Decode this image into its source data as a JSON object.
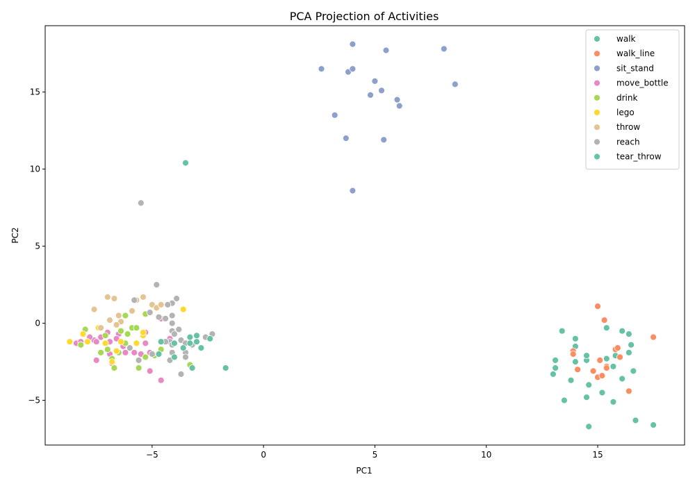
{
  "chart_data": {
    "type": "scatter",
    "title": "PCA Projection of Activities",
    "xlabel": "PC1",
    "ylabel": "PC2",
    "xlim": [
      -9.8,
      18.9
    ],
    "ylim": [
      -7.9,
      19.3
    ],
    "xticks": [
      -5,
      0,
      5,
      10,
      15
    ],
    "yticks": [
      -5,
      0,
      5,
      10,
      15
    ],
    "grid": false,
    "legend_position": "top-right",
    "series": [
      {
        "name": "walk",
        "color": "#66c2a5",
        "points": [
          [
            13.4,
            -0.5
          ],
          [
            14.0,
            -1.0
          ],
          [
            14.0,
            -1.5
          ],
          [
            13.1,
            -2.4
          ],
          [
            13.1,
            -2.9
          ],
          [
            14.0,
            -2.5
          ],
          [
            14.5,
            -2.4
          ],
          [
            14.6,
            -4.0
          ],
          [
            13.8,
            -3.7
          ],
          [
            13.0,
            -3.3
          ],
          [
            13.5,
            -5.0
          ],
          [
            14.5,
            -4.8
          ],
          [
            15.2,
            -4.5
          ],
          [
            15.7,
            -5.1
          ],
          [
            14.6,
            -6.7
          ],
          [
            16.7,
            -6.3
          ],
          [
            17.5,
            -6.6
          ],
          [
            15.4,
            -0.3
          ],
          [
            16.1,
            -0.5
          ],
          [
            16.4,
            -0.7
          ],
          [
            16.5,
            -1.4
          ],
          [
            16.4,
            -1.9
          ],
          [
            15.8,
            -2.1
          ],
          [
            15.4,
            -2.3
          ],
          [
            15.7,
            -2.8
          ],
          [
            16.6,
            -3.1
          ],
          [
            16.1,
            -3.6
          ],
          [
            14.5,
            -2.1
          ]
        ]
      },
      {
        "name": "walk_line",
        "color": "#fc8d62",
        "points": [
          [
            15.0,
            1.1
          ],
          [
            15.3,
            0.2
          ],
          [
            17.5,
            -0.9
          ],
          [
            13.9,
            -1.8
          ],
          [
            13.9,
            -2.0
          ],
          [
            15.8,
            -1.7
          ],
          [
            15.9,
            -1.6
          ],
          [
            15.1,
            -2.4
          ],
          [
            16.0,
            -2.2
          ],
          [
            15.4,
            -2.8
          ],
          [
            14.1,
            -3.0
          ],
          [
            14.8,
            -3.1
          ],
          [
            15.0,
            -3.5
          ],
          [
            15.2,
            -3.4
          ],
          [
            16.4,
            -4.4
          ],
          [
            15.4,
            -2.9
          ]
        ]
      },
      {
        "name": "sit_stand",
        "color": "#8da0cb",
        "points": [
          [
            4.0,
            18.1
          ],
          [
            5.5,
            17.7
          ],
          [
            8.1,
            17.8
          ],
          [
            2.6,
            16.5
          ],
          [
            3.8,
            16.3
          ],
          [
            4.0,
            16.5
          ],
          [
            5.0,
            15.7
          ],
          [
            5.3,
            15.1
          ],
          [
            4.8,
            14.8
          ],
          [
            8.6,
            15.5
          ],
          [
            6.0,
            14.5
          ],
          [
            6.1,
            14.1
          ],
          [
            3.2,
            13.5
          ],
          [
            3.7,
            12.0
          ],
          [
            5.4,
            11.9
          ],
          [
            4.0,
            8.6
          ]
        ]
      },
      {
        "name": "move_bottle",
        "color": "#e78ac3",
        "points": [
          [
            -8.4,
            -1.3
          ],
          [
            -8.2,
            -1.2
          ],
          [
            -7.6,
            -1.1
          ],
          [
            -7.5,
            -1.2
          ],
          [
            -7.3,
            -0.9
          ],
          [
            -7.0,
            -0.6
          ],
          [
            -6.9,
            -1.2
          ],
          [
            -6.5,
            -0.7
          ],
          [
            -6.3,
            -1.5
          ],
          [
            -6.2,
            -1.9
          ],
          [
            -5.8,
            -1.9
          ],
          [
            -5.5,
            -2.0
          ],
          [
            -5.3,
            -1.3
          ],
          [
            -5.1,
            -1.9
          ],
          [
            -5.1,
            -3.1
          ],
          [
            -4.6,
            -3.7
          ],
          [
            -7.5,
            -2.4
          ],
          [
            -6.8,
            -2.6
          ],
          [
            -4.2,
            -1.0
          ],
          [
            -4.6,
            0.3
          ],
          [
            -5.3,
            -0.6
          ],
          [
            -7.8,
            -0.9
          ],
          [
            -6.6,
            -1.0
          ],
          [
            -6.9,
            -2.0
          ]
        ]
      },
      {
        "name": "drink",
        "color": "#a6d854",
        "points": [
          [
            -8.0,
            -0.4
          ],
          [
            -8.2,
            -1.4
          ],
          [
            -7.3,
            -1.9
          ],
          [
            -7.0,
            -1.7
          ],
          [
            -6.7,
            -2.9
          ],
          [
            -6.5,
            -1.9
          ],
          [
            -6.2,
            -1.3
          ],
          [
            -6.1,
            -0.7
          ],
          [
            -6.2,
            0.5
          ],
          [
            -5.9,
            -0.3
          ],
          [
            -5.7,
            -0.3
          ],
          [
            -5.6,
            -2.9
          ],
          [
            -5.3,
            -2.2
          ],
          [
            -5.3,
            0.6
          ],
          [
            -4.9,
            -2.1
          ],
          [
            -4.6,
            -1.7
          ],
          [
            -3.3,
            -2.7
          ],
          [
            -6.4,
            -0.5
          ],
          [
            -6.8,
            -2.3
          ],
          [
            -7.1,
            -0.8
          ]
        ]
      },
      {
        "name": "lego",
        "color": "#ffd92f",
        "points": [
          [
            -8.7,
            -1.2
          ],
          [
            -8.1,
            -0.7
          ],
          [
            -7.4,
            -0.3
          ],
          [
            -7.1,
            -1.3
          ],
          [
            -6.6,
            -1.8
          ],
          [
            -6.4,
            -1.2
          ],
          [
            -6.8,
            -2.5
          ],
          [
            -5.7,
            -1.3
          ],
          [
            -5.4,
            -0.8
          ],
          [
            -5.4,
            -0.6
          ],
          [
            -4.7,
            -2.0
          ],
          [
            -3.6,
            0.9
          ],
          [
            -7.9,
            -1.2
          ]
        ]
      },
      {
        "name": "throw",
        "color": "#e5c494",
        "points": [
          [
            -7.6,
            0.9
          ],
          [
            -7.0,
            1.7
          ],
          [
            -6.7,
            1.6
          ],
          [
            -6.5,
            0.5
          ],
          [
            -6.4,
            0.1
          ],
          [
            -5.9,
            0.8
          ],
          [
            -5.7,
            1.5
          ],
          [
            -5.4,
            1.7
          ],
          [
            -5.0,
            1.2
          ],
          [
            -4.8,
            1.0
          ],
          [
            -4.6,
            1.2
          ],
          [
            -6.9,
            0.2
          ],
          [
            -7.3,
            -0.3
          ],
          [
            -6.6,
            -0.1
          ]
        ]
      },
      {
        "name": "reach",
        "color": "#b3b3b3",
        "points": [
          [
            -5.5,
            7.8
          ],
          [
            -4.8,
            2.5
          ],
          [
            -3.9,
            1.6
          ],
          [
            -4.1,
            1.3
          ],
          [
            -4.3,
            1.2
          ],
          [
            -5.8,
            1.5
          ],
          [
            -5.1,
            0.7
          ],
          [
            -4.7,
            0.4
          ],
          [
            -4.4,
            0.3
          ],
          [
            -4.1,
            0.5
          ],
          [
            -4.1,
            0.0
          ],
          [
            -3.8,
            -0.4
          ],
          [
            -4.1,
            -0.5
          ],
          [
            -4.0,
            -0.7
          ],
          [
            -3.7,
            -1.1
          ],
          [
            -4.2,
            -1.2
          ],
          [
            -4.4,
            -1.2
          ],
          [
            -3.5,
            -1.3
          ],
          [
            -4.1,
            -1.4
          ],
          [
            -3.5,
            -1.9
          ],
          [
            -4.1,
            -1.9
          ],
          [
            -3.5,
            -2.2
          ],
          [
            -4.2,
            -2.4
          ],
          [
            -3.7,
            -3.3
          ],
          [
            -2.6,
            -0.9
          ],
          [
            -2.3,
            -0.7
          ],
          [
            -6.0,
            -1.6
          ],
          [
            -5.6,
            -2.4
          ],
          [
            -3.2,
            -1.4
          ],
          [
            -5.0,
            -2.0
          ]
        ]
      },
      {
        "name": "tear_throw",
        "color": "#66c2a5",
        "points": [
          [
            -3.5,
            10.4
          ],
          [
            -3.0,
            -0.8
          ],
          [
            -3.3,
            -0.9
          ],
          [
            -2.4,
            -1.0
          ],
          [
            -3.0,
            -1.2
          ],
          [
            -3.3,
            -1.3
          ],
          [
            -2.8,
            -1.6
          ],
          [
            -4.6,
            -1.2
          ],
          [
            -4.0,
            -1.3
          ],
          [
            -3.6,
            -1.6
          ],
          [
            -4.0,
            -2.2
          ],
          [
            -3.2,
            -2.9
          ],
          [
            -1.7,
            -2.9
          ],
          [
            -4.7,
            -2.0
          ]
        ]
      }
    ]
  }
}
